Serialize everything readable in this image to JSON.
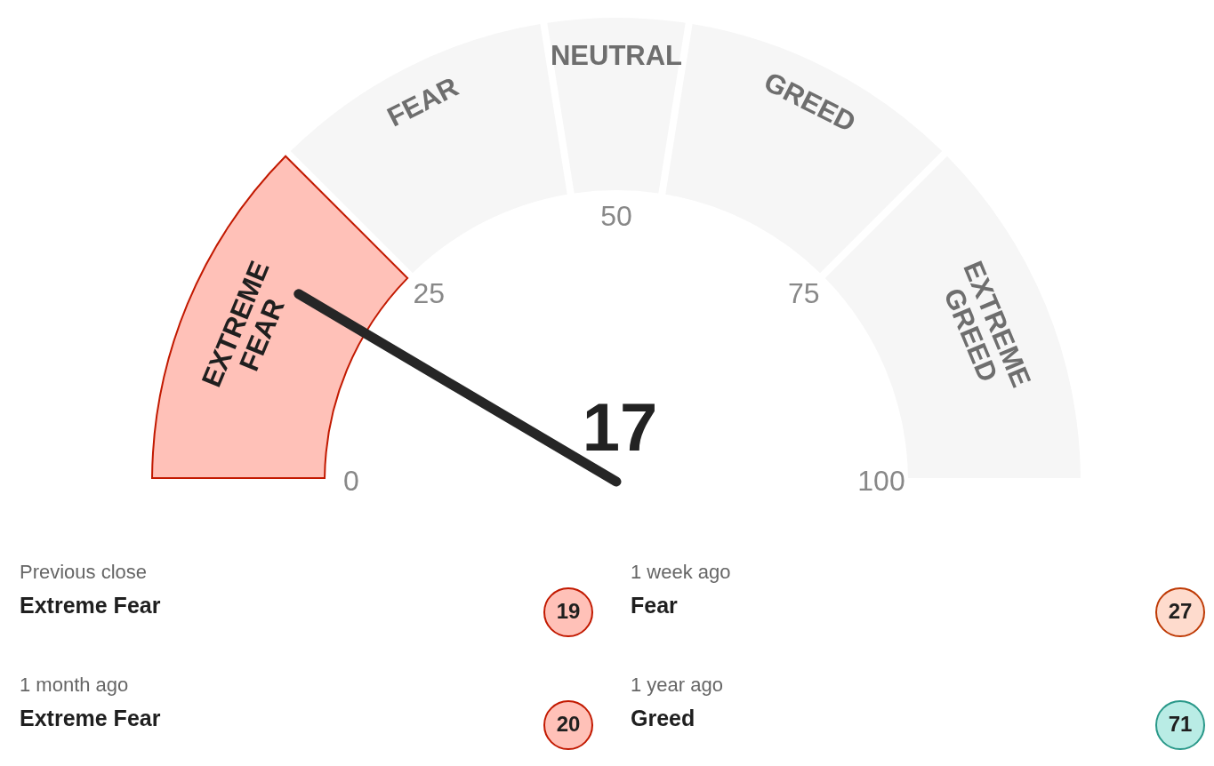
{
  "chart_data": [
    {
      "type": "donut",
      "categories": [
        "EXTREME FEAR",
        "FEAR",
        "NEUTRAL",
        "GREED",
        "EXTREME GREED"
      ],
      "values": [
        25,
        20,
        10,
        20,
        25
      ],
      "colors": [
        "#ffc1b8",
        "#f6f6f6",
        "#f6f6f6",
        "#f6f6f6",
        "#f6f6f6"
      ],
      "needle": "EXTREME FEAR",
      "annotations": [
        "17",
        "0",
        "25",
        "50",
        "75",
        "100"
      ]
    },
    {
      "type": "other",
      "annotations": [
        "Previous close",
        "Extreme Fear",
        "19",
        "1 week ago",
        "Fear",
        "27",
        "1 month ago",
        "Extreme Fear",
        "20",
        "1 year ago",
        "Greed",
        "71"
      ],
      "colors": [
        "#ffc1b8",
        "#fedbcd",
        "#ffc1b8",
        "#b9ece5"
      ]
    }
  ]
}
